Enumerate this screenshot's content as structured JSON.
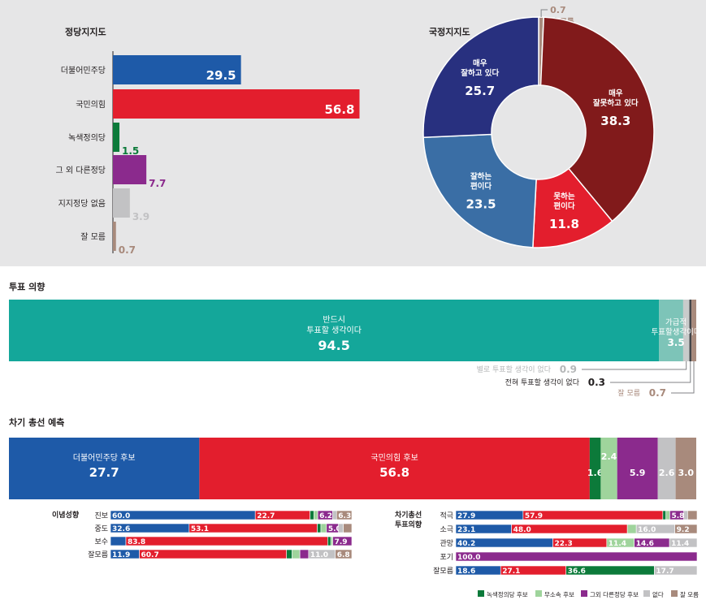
{
  "colors": {
    "blue": "#1e5aa8",
    "red": "#e31e2d",
    "green": "#0c7a3a",
    "lightgreen": "#9fd49c",
    "purple": "#8b2a8d",
    "lightgray": "#c2c2c4",
    "brown": "#a88a7c",
    "darkred": "#811a1b",
    "navy": "#28307f",
    "steel": "#3a6ea5",
    "teal": "#14a79a",
    "lightteal": "#7dc4b8",
    "panel": "#e6e6e7"
  },
  "chart_data": [
    {
      "type": "bar",
      "orientation": "horizontal",
      "title": "정당지지도",
      "categories": [
        "더불어민주당",
        "국민의힘",
        "녹색정의당",
        "그 외 다른정당",
        "지지정당 없음",
        "잘 모름"
      ],
      "values": [
        29.5,
        56.8,
        1.5,
        7.7,
        3.9,
        0.7
      ],
      "colors": [
        "#1e5aa8",
        "#e31e2d",
        "#0c7a3a",
        "#8b2a8d",
        "#c2c2c4",
        "#a88a7c"
      ]
    },
    {
      "type": "pie",
      "title": "국정지지도",
      "donut": true,
      "slices": [
        {
          "label": [
            "잘 모름"
          ],
          "value": 0.7,
          "color": "#a88a7c"
        },
        {
          "label": [
            "매우",
            "잘못하고 있다"
          ],
          "value": 38.3,
          "color": "#811a1b"
        },
        {
          "label": [
            "못하는",
            "편이다"
          ],
          "value": 11.8,
          "color": "#e31e2d"
        },
        {
          "label": [
            "잘하는",
            "편이다"
          ],
          "value": 23.5,
          "color": "#3a6ea5"
        },
        {
          "label": [
            "매우",
            "잘하고 있다"
          ],
          "value": 25.7,
          "color": "#28307f"
        }
      ]
    },
    {
      "type": "bar",
      "stacked": true,
      "orientation": "horizontal",
      "title": "투표 의향",
      "segments": [
        {
          "label": [
            "반드시",
            "투표할 생각이다"
          ],
          "value": 94.5,
          "color": "#14a79a"
        },
        {
          "label": [
            "가급적",
            "투표할생각이다"
          ],
          "value": 3.5,
          "color": "#7dc4b8"
        },
        {
          "label": [
            "별로 투표할 생각이 없다"
          ],
          "value": 0.9,
          "color": "#c9cbcb"
        },
        {
          "label": [
            "전혀 투표할 생각이 없다"
          ],
          "value": 0.3,
          "color": "#44464a"
        },
        {
          "label": [
            "잘 모름"
          ],
          "value": 0.7,
          "color": "#a88a7c"
        }
      ]
    },
    {
      "type": "bar",
      "stacked": true,
      "orientation": "horizontal",
      "title": "차기 총선 예측",
      "segments": [
        {
          "label": [
            "더불어민주당 후보"
          ],
          "value": 27.7,
          "color": "#1e5aa8"
        },
        {
          "label": [
            "국민의힘 후보"
          ],
          "value": 56.8,
          "color": "#e31e2d"
        },
        {
          "label": [],
          "value": 1.6,
          "color": "#0c7a3a"
        },
        {
          "label": [],
          "value": 2.4,
          "color": "#9fd49c"
        },
        {
          "label": [],
          "value": 5.9,
          "color": "#8b2a8d"
        },
        {
          "label": [],
          "value": 2.6,
          "color": "#c2c2c4"
        },
        {
          "label": [],
          "value": 3.0,
          "color": "#a88a7c"
        }
      ]
    },
    {
      "type": "bar",
      "stacked": true,
      "orientation": "horizontal",
      "group_label": "이념성향",
      "series_order": [
        "더불어민주당 후보",
        "국민의힘 후보",
        "녹색정의당 후보",
        "무소속 후보",
        "그외 다른정당 후보",
        "없다",
        "잘 모름"
      ],
      "rows": [
        {
          "category": "진보",
          "values": [
            60.0,
            22.7,
            1.6,
            1.6,
            6.2,
            1.6,
            6.3
          ],
          "labels": [
            "60.0",
            "22.7",
            "",
            "",
            "6.2",
            "",
            "6.3"
          ]
        },
        {
          "category": "중도",
          "values": [
            32.6,
            53.1,
            1.5,
            2.3,
            5.0,
            2.0,
            3.5
          ],
          "labels": [
            "32.6",
            "53.1",
            "",
            "",
            "5.0",
            "",
            ""
          ]
        },
        {
          "category": "보수",
          "values": [
            6.4,
            83.8,
            1.3,
            0.8,
            7.9,
            0,
            0
          ],
          "labels": [
            "",
            "83.8",
            "",
            "",
            "7.9",
            "",
            ""
          ]
        },
        {
          "category": "잘모름",
          "values": [
            11.9,
            60.7,
            2.3,
            3.2,
            3.6,
            11.0,
            6.8
          ],
          "labels": [
            "11.9",
            "60.7",
            "",
            "",
            "",
            "11.0",
            "6.8"
          ]
        }
      ]
    },
    {
      "type": "bar",
      "stacked": true,
      "orientation": "horizontal",
      "group_label": [
        "차기총선",
        "투표의향"
      ],
      "series_order": [
        "더불어민주당 후보",
        "국민의힘 후보",
        "녹색정의당 후보",
        "무소속 후보",
        "그외 다른정당 후보",
        "없다",
        "잘 모름"
      ],
      "rows": [
        {
          "category": "적극",
          "values": [
            27.9,
            57.9,
            1.3,
            1.6,
            5.8,
            1.6,
            3.9
          ],
          "labels": [
            "27.9",
            "57.9",
            "",
            "",
            "5.8",
            "",
            ""
          ]
        },
        {
          "category": "소극",
          "values": [
            23.1,
            48.0,
            0,
            3.7,
            0,
            16.0,
            9.2
          ],
          "labels": [
            "23.1",
            "48.0",
            "",
            "",
            "",
            "16.0",
            "9.2"
          ]
        },
        {
          "category": "관망",
          "values": [
            40.2,
            22.3,
            0,
            11.4,
            14.6,
            11.4,
            0
          ],
          "labels": [
            "40.2",
            "22.3",
            "",
            "11.4",
            "14.6",
            "11.4",
            ""
          ]
        },
        {
          "category": "포기",
          "values": [
            0,
            0,
            0,
            0,
            100.0,
            0,
            0
          ],
          "labels": [
            "",
            "",
            "",
            "",
            "100.0",
            "",
            ""
          ]
        },
        {
          "category": "잘모름",
          "values": [
            18.6,
            27.1,
            36.6,
            0,
            0,
            17.7,
            0
          ],
          "labels": [
            "18.6",
            "27.1",
            "36.6",
            "",
            "",
            "17.7",
            ""
          ]
        }
      ]
    }
  ],
  "legend": [
    {
      "label": "녹색정의당 후보",
      "color": "#0c7a3a"
    },
    {
      "label": "무소속 후보",
      "color": "#9fd49c"
    },
    {
      "label": "그외 다른정당 후보",
      "color": "#8b2a8d"
    },
    {
      "label": "없다",
      "color": "#c2c2c4"
    },
    {
      "label": "잘 모름",
      "color": "#a88a7c"
    }
  ]
}
